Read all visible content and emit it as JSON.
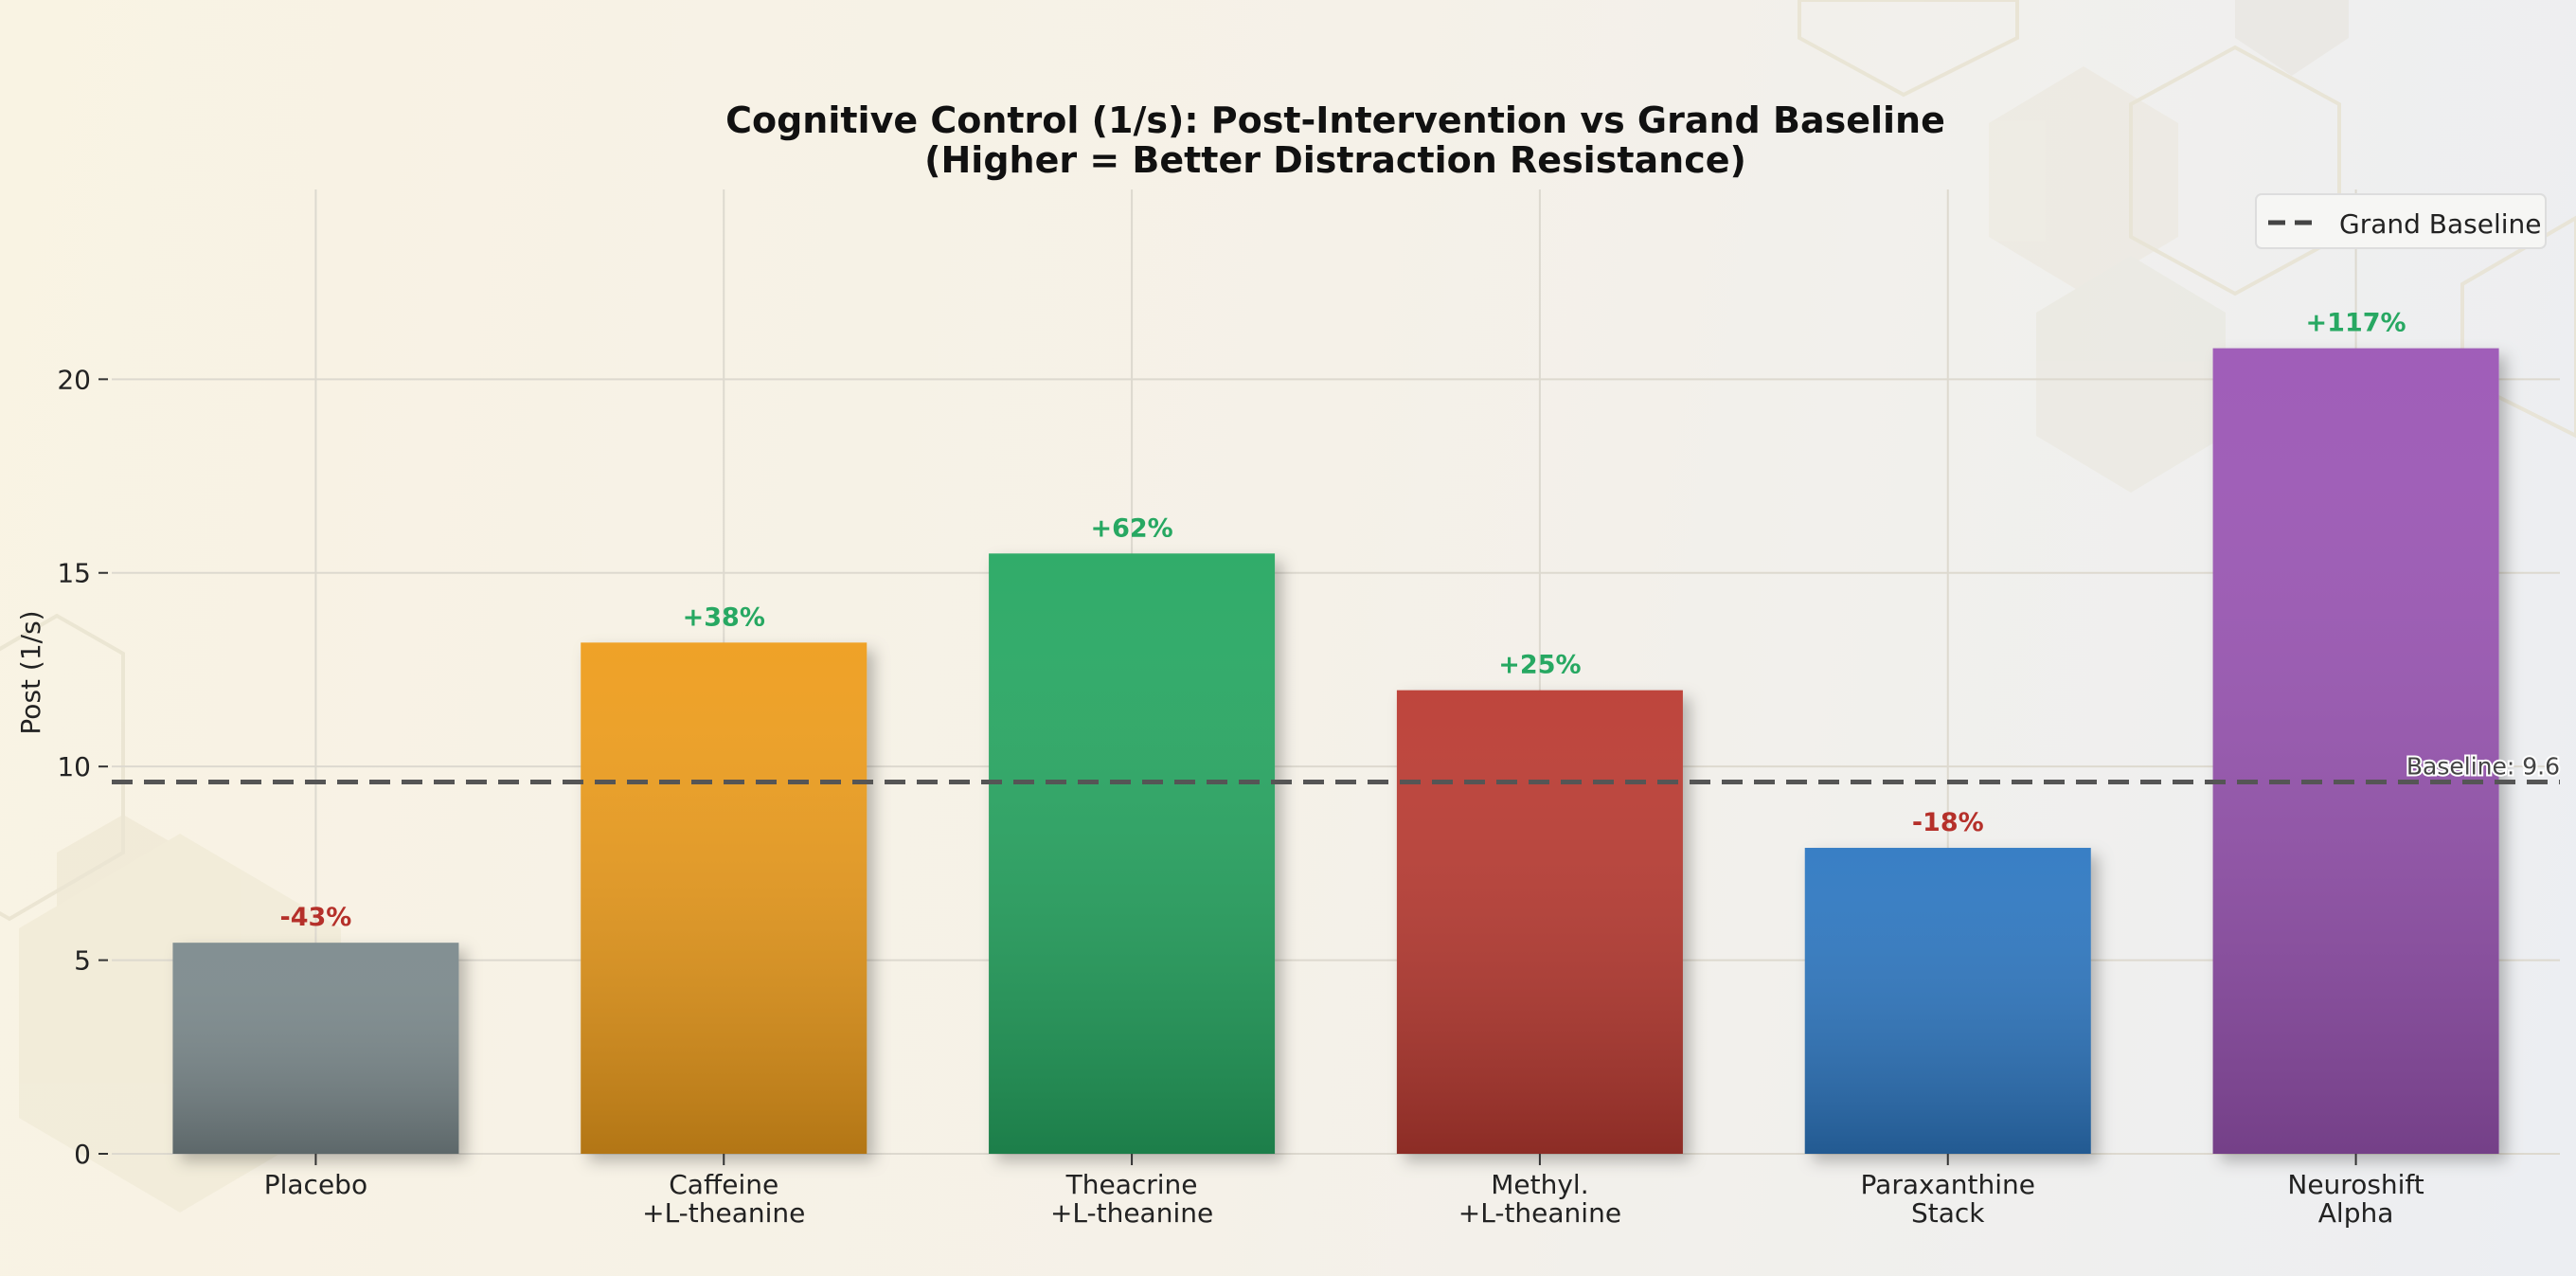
{
  "chart_data": {
    "type": "bar",
    "title": "Cognitive Control (1/s): Post-Intervention vs Grand Baseline",
    "subtitle": "(Higher = Better Distraction Resistance)",
    "xlabel": "",
    "ylabel": "Post (1/s)",
    "ylim": [
      0,
      24.9
    ],
    "yticks": [
      0,
      5,
      10,
      15,
      20
    ],
    "grid": true,
    "legend": {
      "placement": "top-right",
      "entries": [
        "Grand Baseline"
      ]
    },
    "categories": [
      [
        "Placebo"
      ],
      [
        "Caffeine",
        "+L-theanine"
      ],
      [
        "Theacrine",
        "+L-theanine"
      ],
      [
        "Methyl.",
        "+L-theanine"
      ],
      [
        "Paraxanthine",
        "Stack"
      ],
      [
        "Neuroshift",
        "Alpha"
      ]
    ],
    "values": [
      5.45,
      13.2,
      15.5,
      11.97,
      7.9,
      20.8
    ],
    "data_labels": [
      "-43%",
      "+38%",
      "+62%",
      "+25%",
      "-18%",
      "+117%"
    ],
    "colors": [
      "#7b8a8d",
      "#ee9d1c",
      "#27a862",
      "#bb3b31",
      "#2e78c2",
      "#9b55b5"
    ],
    "label_colors": {
      "positive": "#27a862",
      "negative": "#b5302a"
    },
    "baseline": {
      "value": 9.6,
      "label": "Baseline: 9.6",
      "color": "#555555",
      "style": "dashed"
    }
  }
}
